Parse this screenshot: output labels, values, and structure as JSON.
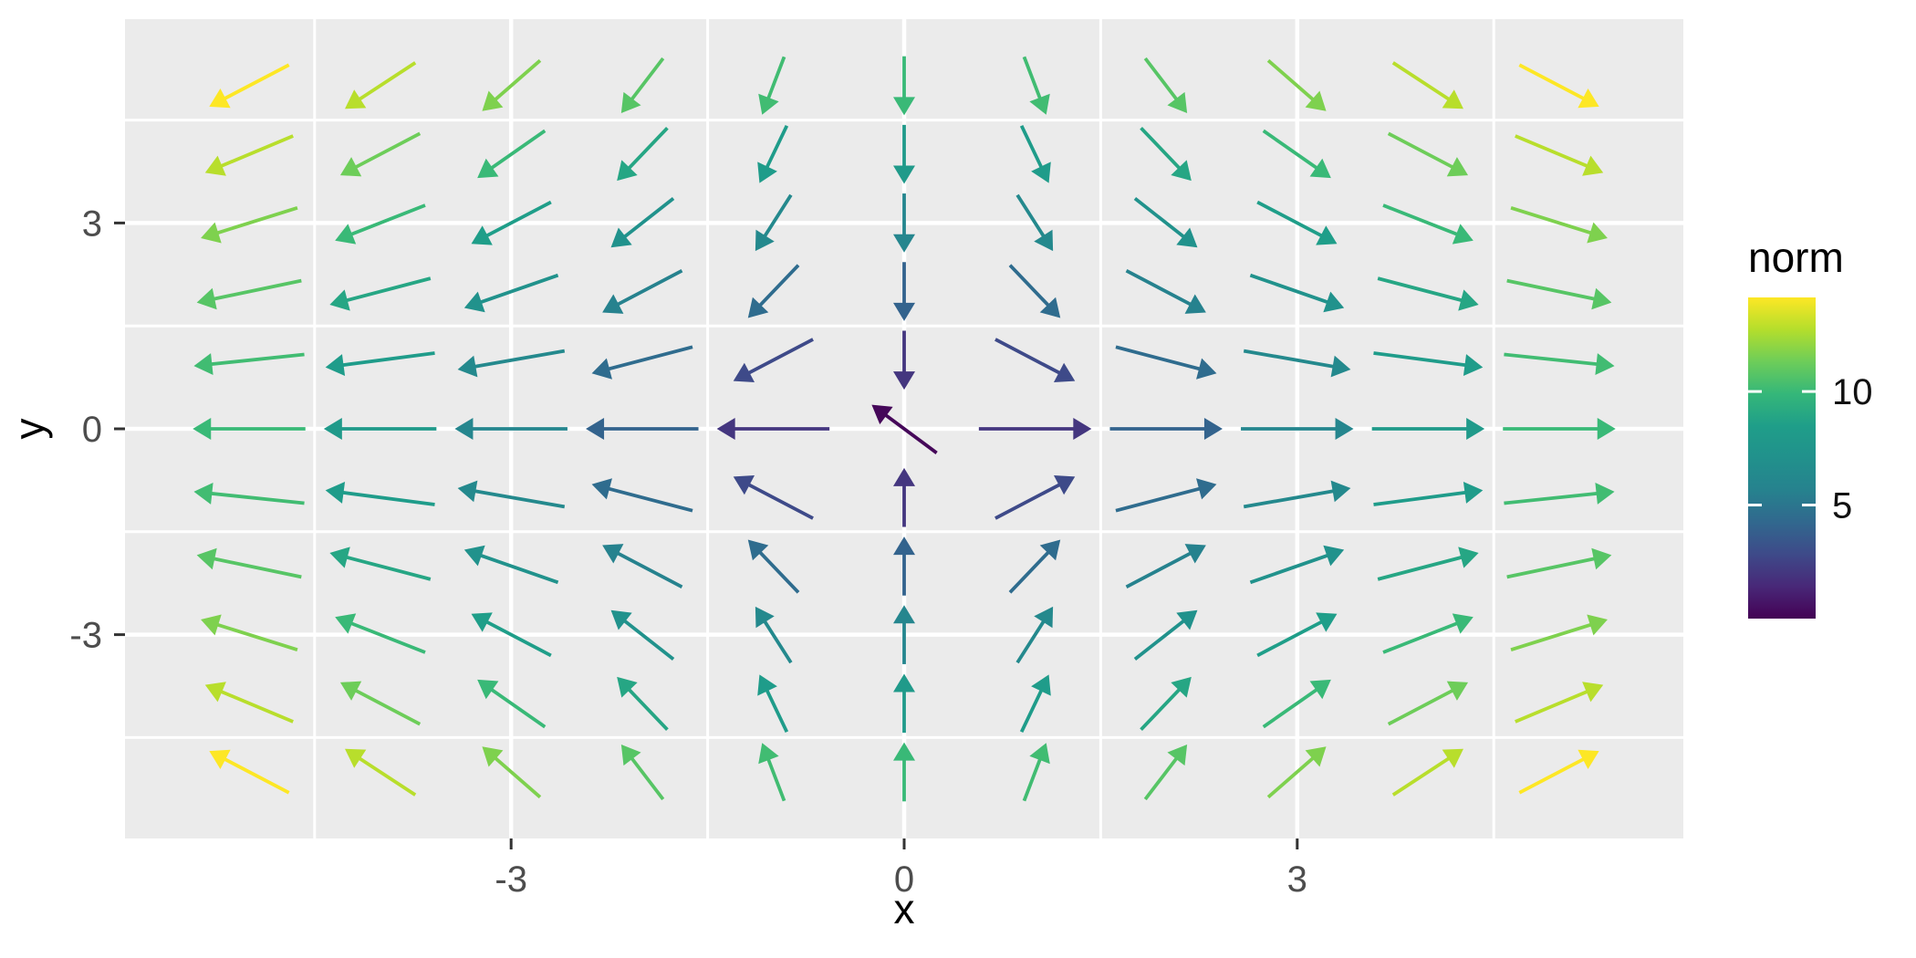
{
  "figure": {
    "background": "#FFFFFF",
    "panel_background": "#EBEBEB",
    "gridline_color": "#FFFFFF",
    "tick_mark_color": "#333333",
    "tick_label_color": "#4D4D4D",
    "axis_title_color": "#000000"
  },
  "axes": {
    "x": {
      "title": "x",
      "breaks": [
        -3,
        0,
        3
      ],
      "labels": [
        "-3",
        "0",
        "3"
      ],
      "minor_breaks": [
        -4.5,
        -1.5,
        1.5,
        4.5
      ],
      "range": [
        -5.96,
        5.96
      ]
    },
    "y": {
      "title": "y",
      "breaks": [
        -3,
        0,
        3
      ],
      "labels": [
        "-3",
        "0",
        "3"
      ],
      "minor_breaks": [
        -4.5,
        -1.5,
        1.5,
        4.5
      ],
      "range": [
        -5.96,
        5.96
      ]
    }
  },
  "legend": {
    "title": "norm",
    "breaks": [
      5,
      10
    ],
    "labels": [
      "5",
      "10"
    ],
    "limits": [
      0,
      14.142
    ],
    "palette": "viridis"
  },
  "colors": {
    "viridis_stops": [
      "#440154",
      "#482878",
      "#3E4A89",
      "#31688E",
      "#26828E",
      "#21918C",
      "#1F9E89",
      "#35B779",
      "#6DCD59",
      "#B4DE2C",
      "#FDE725"
    ]
  },
  "chart_data": {
    "type": "quiver",
    "title": "",
    "xlabel": "x",
    "ylabel": "y",
    "color_by": "norm",
    "field": "u = 2x, v = -2y; arrows drawn with constant display length centered on grid points; color encodes norm = sqrt(u^2+v^2)",
    "x_seq": [
      -5,
      -4,
      -3,
      -2,
      -1,
      0,
      1,
      2,
      3,
      4,
      5
    ],
    "y_seq": [
      -5,
      -4,
      -3,
      -2,
      -1,
      0,
      1,
      2,
      3,
      4,
      5
    ],
    "norm_range": [
      0,
      14.142
    ],
    "arrow_display_length_units": 0.86,
    "origin_anomaly": "arrow at (0,0) has near-zero norm and points up-left",
    "arrows": [
      [
        -5,
        5,
        -10,
        -10
      ],
      [
        -4,
        5,
        -8,
        -10
      ],
      [
        -3,
        5,
        -6,
        -10
      ],
      [
        -2,
        5,
        -4,
        -10
      ],
      [
        -1,
        5,
        -2,
        -10
      ],
      [
        0,
        5,
        0,
        -10
      ],
      [
        1,
        5,
        2,
        -10
      ],
      [
        2,
        5,
        4,
        -10
      ],
      [
        3,
        5,
        6,
        -10
      ],
      [
        4,
        5,
        8,
        -10
      ],
      [
        5,
        5,
        10,
        -10
      ],
      [
        -5,
        4,
        -10,
        -8
      ],
      [
        -4,
        4,
        -8,
        -8
      ],
      [
        -3,
        4,
        -6,
        -8
      ],
      [
        -2,
        4,
        -4,
        -8
      ],
      [
        -1,
        4,
        -2,
        -8
      ],
      [
        0,
        4,
        0,
        -8
      ],
      [
        1,
        4,
        2,
        -8
      ],
      [
        2,
        4,
        4,
        -8
      ],
      [
        3,
        4,
        6,
        -8
      ],
      [
        4,
        4,
        8,
        -8
      ],
      [
        5,
        4,
        10,
        -8
      ],
      [
        -5,
        3,
        -10,
        -6
      ],
      [
        -4,
        3,
        -8,
        -6
      ],
      [
        -3,
        3,
        -6,
        -6
      ],
      [
        -2,
        3,
        -4,
        -6
      ],
      [
        -1,
        3,
        -2,
        -6
      ],
      [
        0,
        3,
        0,
        -6
      ],
      [
        1,
        3,
        2,
        -6
      ],
      [
        2,
        3,
        4,
        -6
      ],
      [
        3,
        3,
        6,
        -6
      ],
      [
        4,
        3,
        8,
        -6
      ],
      [
        5,
        3,
        10,
        -6
      ],
      [
        -5,
        2,
        -10,
        -4
      ],
      [
        -4,
        2,
        -8,
        -4
      ],
      [
        -3,
        2,
        -6,
        -4
      ],
      [
        -2,
        2,
        -4,
        -4
      ],
      [
        -1,
        2,
        -2,
        -4
      ],
      [
        0,
        2,
        0,
        -4
      ],
      [
        1,
        2,
        2,
        -4
      ],
      [
        2,
        2,
        4,
        -4
      ],
      [
        3,
        2,
        6,
        -4
      ],
      [
        4,
        2,
        8,
        -4
      ],
      [
        5,
        2,
        10,
        -4
      ],
      [
        -5,
        1,
        -10,
        -2
      ],
      [
        -4,
        1,
        -8,
        -2
      ],
      [
        -3,
        1,
        -6,
        -2
      ],
      [
        -2,
        1,
        -4,
        -2
      ],
      [
        -1,
        1,
        -2,
        -2
      ],
      [
        0,
        1,
        0,
        -2
      ],
      [
        1,
        1,
        2,
        -2
      ],
      [
        2,
        1,
        4,
        -2
      ],
      [
        3,
        1,
        6,
        -2
      ],
      [
        4,
        1,
        8,
        -2
      ],
      [
        5,
        1,
        10,
        -2
      ],
      [
        -5,
        0,
        -10,
        0
      ],
      [
        -4,
        0,
        -8,
        0
      ],
      [
        -3,
        0,
        -6,
        0
      ],
      [
        -2,
        0,
        -4,
        0
      ],
      [
        -1,
        0,
        -2,
        0
      ],
      [
        0,
        0,
        -0.12,
        0.17
      ],
      [
        1,
        0,
        2,
        0
      ],
      [
        2,
        0,
        4,
        0
      ],
      [
        3,
        0,
        6,
        0
      ],
      [
        4,
        0,
        8,
        0
      ],
      [
        5,
        0,
        10,
        0
      ],
      [
        -5,
        -1,
        -10,
        2
      ],
      [
        -4,
        -1,
        -8,
        2
      ],
      [
        -3,
        -1,
        -6,
        2
      ],
      [
        -2,
        -1,
        -4,
        2
      ],
      [
        -1,
        -1,
        -2,
        2
      ],
      [
        0,
        -1,
        0,
        2
      ],
      [
        1,
        -1,
        2,
        2
      ],
      [
        2,
        -1,
        4,
        2
      ],
      [
        3,
        -1,
        6,
        2
      ],
      [
        4,
        -1,
        8,
        2
      ],
      [
        5,
        -1,
        10,
        2
      ],
      [
        -5,
        -2,
        -10,
        4
      ],
      [
        -4,
        -2,
        -8,
        4
      ],
      [
        -3,
        -2,
        -6,
        4
      ],
      [
        -2,
        -2,
        -4,
        4
      ],
      [
        -1,
        -2,
        -2,
        4
      ],
      [
        0,
        -2,
        0,
        4
      ],
      [
        1,
        -2,
        2,
        4
      ],
      [
        2,
        -2,
        4,
        4
      ],
      [
        3,
        -2,
        6,
        4
      ],
      [
        4,
        -2,
        8,
        4
      ],
      [
        5,
        -2,
        10,
        4
      ],
      [
        -5,
        -3,
        -10,
        6
      ],
      [
        -4,
        -3,
        -8,
        6
      ],
      [
        -3,
        -3,
        -6,
        6
      ],
      [
        -2,
        -3,
        -4,
        6
      ],
      [
        -1,
        -3,
        -2,
        6
      ],
      [
        0,
        -3,
        0,
        6
      ],
      [
        1,
        -3,
        2,
        6
      ],
      [
        2,
        -3,
        4,
        6
      ],
      [
        3,
        -3,
        6,
        6
      ],
      [
        4,
        -3,
        8,
        6
      ],
      [
        5,
        -3,
        10,
        6
      ],
      [
        -5,
        -4,
        -10,
        8
      ],
      [
        -4,
        -4,
        -8,
        8
      ],
      [
        -3,
        -4,
        -6,
        8
      ],
      [
        -2,
        -4,
        -4,
        8
      ],
      [
        -1,
        -4,
        -2,
        8
      ],
      [
        0,
        -4,
        0,
        8
      ],
      [
        1,
        -4,
        2,
        8
      ],
      [
        2,
        -4,
        4,
        8
      ],
      [
        3,
        -4,
        6,
        8
      ],
      [
        4,
        -4,
        8,
        8
      ],
      [
        5,
        -4,
        10,
        8
      ],
      [
        -5,
        -5,
        -10,
        10
      ],
      [
        -4,
        -5,
        -8,
        10
      ],
      [
        -3,
        -5,
        -6,
        10
      ],
      [
        -2,
        -5,
        -4,
        10
      ],
      [
        -1,
        -5,
        -2,
        10
      ],
      [
        0,
        -5,
        0,
        10
      ],
      [
        1,
        -5,
        2,
        10
      ],
      [
        2,
        -5,
        4,
        10
      ],
      [
        3,
        -5,
        6,
        10
      ],
      [
        4,
        -5,
        8,
        10
      ],
      [
        5,
        -5,
        10,
        10
      ]
    ]
  }
}
